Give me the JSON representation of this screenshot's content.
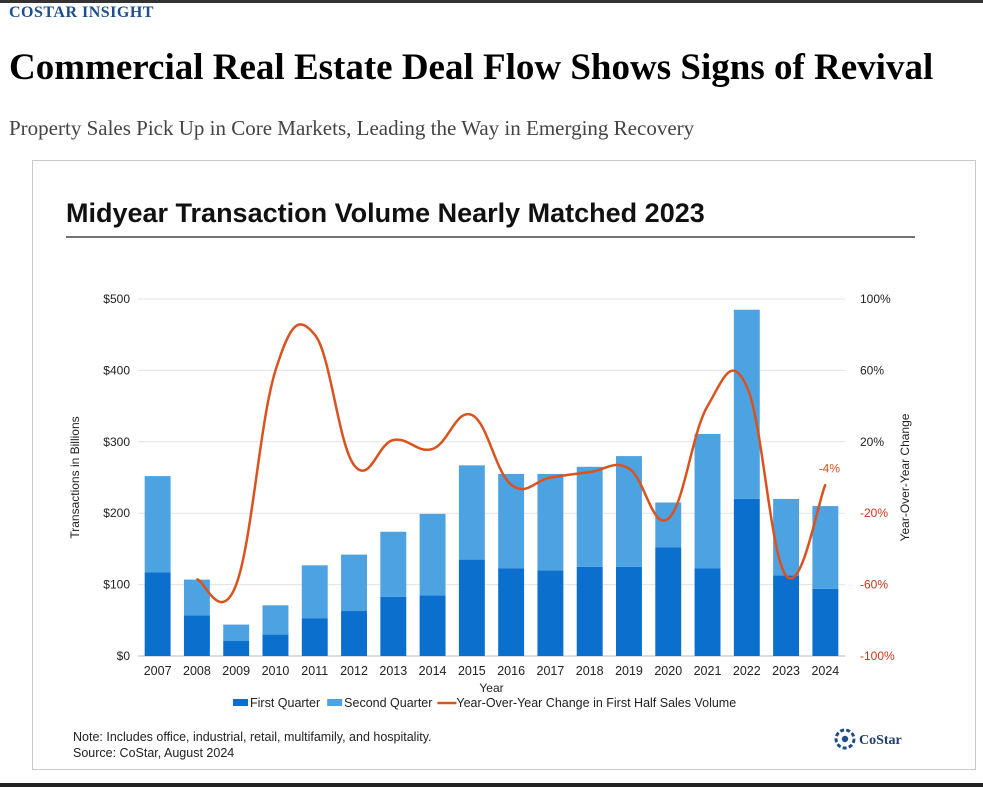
{
  "article": {
    "eyebrow": "COSTAR INSIGHT",
    "headline": "Commercial Real Estate Deal Flow Shows Signs of Revival",
    "subhead": "Property Sales Pick Up in Core Markets, Leading the Way in Emerging Recovery"
  },
  "chart_data": {
    "type": "bar",
    "stacked": true,
    "title": "Midyear Transaction Volume Nearly Matched 2023",
    "xlabel": "Year",
    "ylabel": "Transactions in Billions",
    "y2label": "Year-Over-Year Change",
    "ylim": [
      0,
      500
    ],
    "y2lim": [
      -100,
      100
    ],
    "yticks": [
      "$0",
      "$100",
      "$200",
      "$300",
      "$400",
      "$500"
    ],
    "y2ticks": [
      "-100%",
      "-60%",
      "-20%",
      "20%",
      "60%",
      "100%"
    ],
    "categories": [
      "2007",
      "2008",
      "2009",
      "2010",
      "2011",
      "2012",
      "2013",
      "2014",
      "2015",
      "2016",
      "2017",
      "2018",
      "2019",
      "2020",
      "2021",
      "2022",
      "2023",
      "2024"
    ],
    "series": [
      {
        "name": "First Quarter",
        "kind": "bar",
        "color": "#0b6fce",
        "values": [
          117,
          57,
          21,
          30,
          53,
          63,
          83,
          85,
          135,
          123,
          120,
          125,
          125,
          152,
          123,
          220,
          113,
          94
        ]
      },
      {
        "name": "Second Quarter",
        "kind": "bar",
        "color": "#4da3e2",
        "values": [
          135,
          50,
          23,
          41,
          74,
          79,
          91,
          114,
          132,
          132,
          135,
          140,
          155,
          63,
          188,
          265,
          107,
          116
        ]
      },
      {
        "name": "Year-Over-Year Change in First Half Sales Volume",
        "kind": "line",
        "axis": "right",
        "color": "#d9531e",
        "values": [
          null,
          -57,
          -60,
          60,
          80,
          7,
          21,
          16,
          35,
          -4,
          0,
          3,
          5,
          -23,
          40,
          51,
          -55,
          -4
        ]
      }
    ],
    "annotations": [
      {
        "category": "2024",
        "text": "-4%"
      }
    ],
    "legend": "bottom",
    "grid": "horizontal",
    "note": "Note: Includes office, industrial, retail, multifamily, and hospitality.",
    "source": "Source: CoStar, August 2024",
    "logo": "CoStar"
  }
}
